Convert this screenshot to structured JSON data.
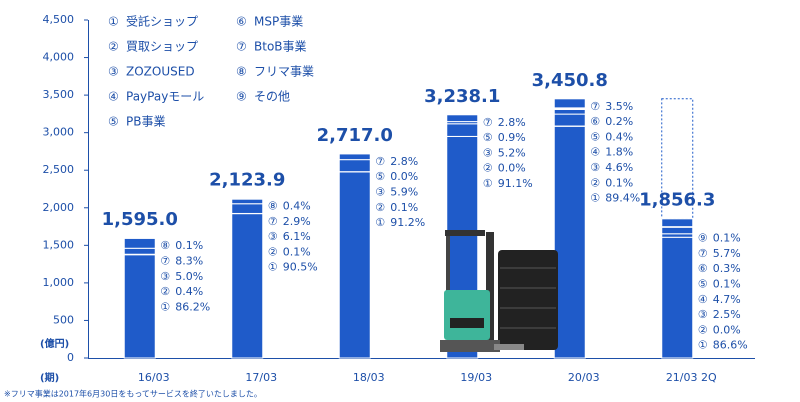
{
  "chart_data": {
    "type": "stacked-bar",
    "color": "#1f5bc9",
    "y_unit": "(億円)",
    "x_unit": "(期)",
    "footnote": "※フリマ事業は2017年6月30日をもってサービスを終了いたしました。",
    "ylim": [
      0,
      4500
    ],
    "yticks": [
      0,
      500,
      {
        "value": 1000,
        "label": "1,000"
      },
      {
        "value": 1500,
        "label": "1,500"
      },
      {
        "value": 2000,
        "label": "2,000"
      },
      {
        "value": 2500,
        "label": "2,500"
      },
      {
        "value": 3000,
        "label": "3,000"
      },
      {
        "value": 3500,
        "label": "3,500"
      },
      {
        "value": 4000,
        "label": "4,000"
      },
      {
        "value": 4500,
        "label": "4,500"
      }
    ],
    "legend": [
      {
        "key": "①",
        "name": "受託ショップ"
      },
      {
        "key": "②",
        "name": "買取ショップ"
      },
      {
        "key": "③",
        "name": "ZOZOUSED"
      },
      {
        "key": "④",
        "name": "PayPayモール"
      },
      {
        "key": "⑤",
        "name": "PB事業"
      },
      {
        "key": "⑥",
        "name": "MSP事業"
      },
      {
        "key": "⑦",
        "name": "BtoB事業"
      },
      {
        "key": "⑧",
        "name": "フリマ事業"
      },
      {
        "key": "⑨",
        "name": "その他"
      }
    ],
    "categories": [
      "16/03",
      "17/03",
      "18/03",
      "19/03",
      "20/03",
      "21/03 2Q"
    ],
    "values": [
      1595.0,
      2123.9,
      2717.0,
      3238.1,
      3450.8,
      1856.3
    ],
    "value_labels": [
      "1,595.0",
      "2,123.9",
      "2,717.0",
      "3,238.1",
      "3,450.8",
      "1,856.3"
    ],
    "breakdowns": [
      {
        "keys": [
          "⑧",
          "⑦",
          "③",
          "②",
          "①"
        ],
        "values": [
          0.1,
          8.3,
          5.0,
          0.4,
          86.2
        ],
        "value_labels": [
          "0.1%",
          "8.3%",
          "5.0%",
          "0.4%",
          "86.2%"
        ]
      },
      {
        "keys": [
          "⑧",
          "⑦",
          "③",
          "②",
          "①"
        ],
        "values": [
          0.4,
          2.9,
          6.1,
          0.1,
          90.5
        ],
        "value_labels": [
          "0.4%",
          "2.9%",
          "6.1%",
          "0.1%",
          "90.5%"
        ]
      },
      {
        "keys": [
          "⑦",
          "⑤",
          "③",
          "②",
          "①"
        ],
        "values": [
          2.8,
          0.0,
          5.9,
          0.1,
          91.2
        ],
        "value_labels": [
          "2.8%",
          "0.0%",
          "5.9%",
          "0.1%",
          "91.2%"
        ]
      },
      {
        "keys": [
          "⑦",
          "⑤",
          "③",
          "②",
          "①"
        ],
        "values": [
          2.8,
          0.9,
          5.2,
          0.0,
          91.1
        ],
        "value_labels": [
          "2.8%",
          "0.9%",
          "5.2%",
          "0.0%",
          "91.1%"
        ]
      },
      {
        "keys": [
          "⑦",
          "⑥",
          "⑤",
          "④",
          "③",
          "②",
          "①"
        ],
        "values": [
          3.5,
          0.2,
          0.4,
          1.8,
          4.6,
          0.1,
          89.4
        ],
        "value_labels": [
          "3.5%",
          "0.2%",
          "0.4%",
          "1.8%",
          "4.6%",
          "0.1%",
          "89.4%"
        ]
      },
      {
        "keys": [
          "⑨",
          "⑦",
          "⑥",
          "⑤",
          "④",
          "③",
          "②",
          "①"
        ],
        "values": [
          0.1,
          5.7,
          0.3,
          0.1,
          4.7,
          2.5,
          0.0,
          86.6
        ],
        "value_labels": [
          "0.1%",
          "5.7%",
          "0.3%",
          "0.1%",
          "4.7%",
          "2.5%",
          "0.0%",
          "86.6%"
        ]
      }
    ]
  }
}
